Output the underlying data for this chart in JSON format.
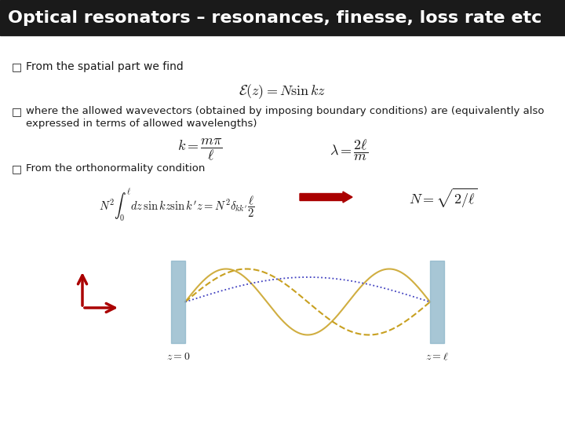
{
  "title": "Optical resonators – resonances, finesse, loss rate etc",
  "title_bg": "#1a1a1a",
  "title_color": "#ffffff",
  "title_fontsize": 16,
  "bg_color": "#ffffff",
  "bullet1": "From the spatial part we find",
  "bullet2a": "where the allowed wavevectors (obtained by imposing boundary conditions) are (equivalently also",
  "bullet2b": "expressed in terms of allowed wavelengths)",
  "bullet3": "From the orthonormality condition",
  "text_color": "#1a1a1a",
  "mirror_color": "#8ab4c8",
  "wave_color1": "#c8a020",
  "wave_color2": "#4040c0",
  "arrow_color": "#aa0000"
}
